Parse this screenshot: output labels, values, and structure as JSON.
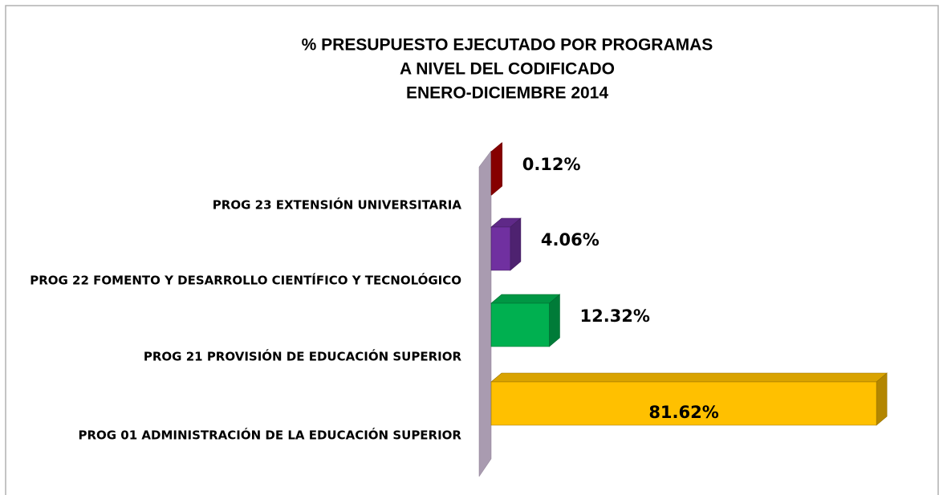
{
  "chart_data": {
    "type": "bar3d-horizontal",
    "title": [
      "% PRESUPUESTO EJECUTADO POR PROGRAMAS",
      "A NIVEL DEL CODIFICADO",
      "ENERO-DICIEMBRE 2014"
    ],
    "categories": [
      "PROG 23 EXTENSIÓN UNIVERSITARIA",
      "PROG 22 FOMENTO Y DESARROLLO CIENTÍFICO Y TECNOLÓGICO",
      "PROG 21 PROVISIÓN DE EDUCACIÓN SUPERIOR",
      "PROG 01 ADMINISTRACIÓN DE LA EDUCACIÓN SUPERIOR"
    ],
    "values": [
      0.12,
      4.06,
      12.32,
      81.62
    ],
    "value_labels": [
      "0.12%",
      "4.06%",
      "12.32%",
      "81.62%"
    ],
    "colors": [
      "#c00000",
      "#7030a0",
      "#00b050",
      "#ffc000"
    ],
    "xlim": [
      0,
      85
    ]
  }
}
